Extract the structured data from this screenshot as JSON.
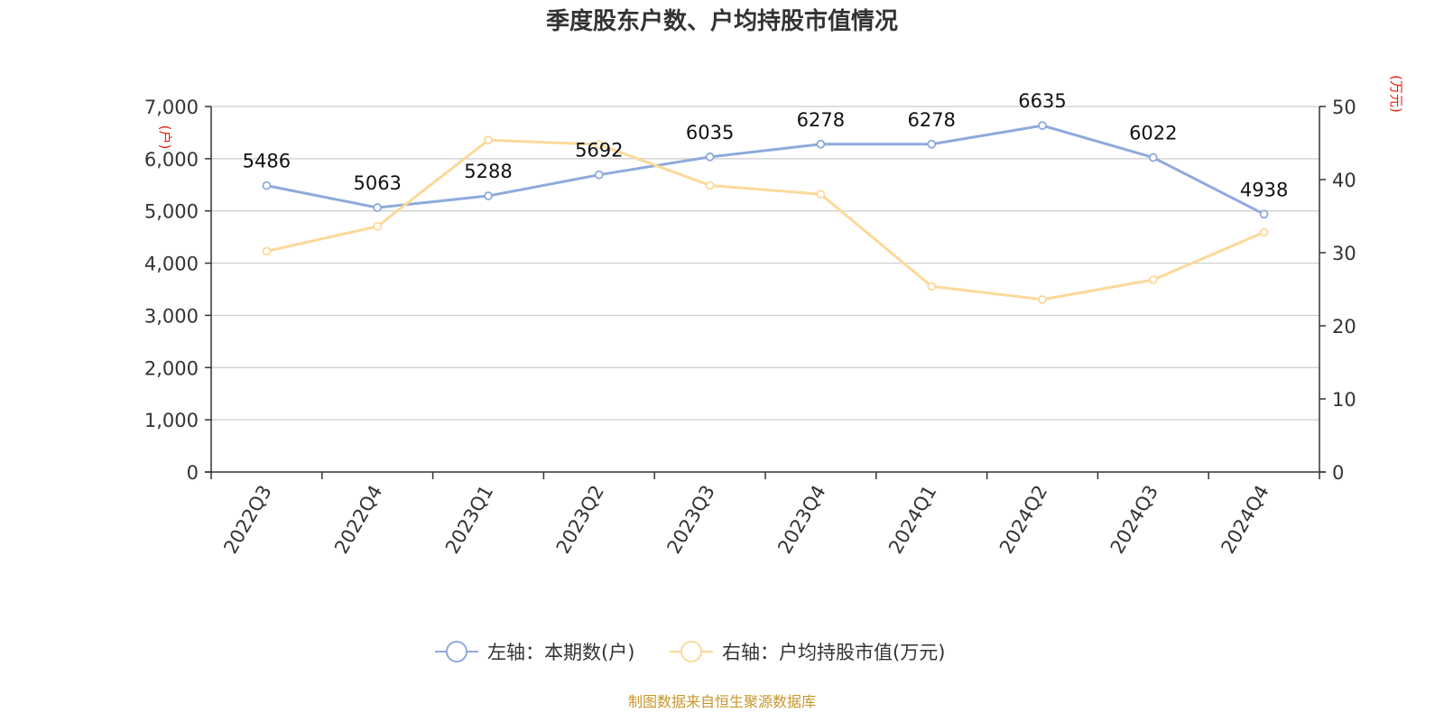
{
  "chart_data": {
    "type": "line",
    "title": "季度股东户数、户均持股市值情况",
    "categories": [
      "2022Q3",
      "2022Q4",
      "2023Q1",
      "2023Q2",
      "2023Q3",
      "2023Q4",
      "2024Q1",
      "2024Q2",
      "2024Q3",
      "2024Q4"
    ],
    "y_left": {
      "unit": "(户)",
      "range": [
        0,
        7000
      ],
      "ticks": [
        0,
        1000,
        2000,
        3000,
        4000,
        5000,
        6000,
        7000
      ],
      "tick_labels": [
        "0",
        "1,000",
        "2,000",
        "3,000",
        "4,000",
        "5,000",
        "6,000",
        "7,000"
      ]
    },
    "y_right": {
      "unit": "(万元)",
      "range": [
        0,
        50
      ],
      "ticks": [
        0,
        10,
        20,
        30,
        40,
        50
      ],
      "tick_labels": [
        "0",
        "10",
        "20",
        "30",
        "40",
        "50"
      ]
    },
    "series": [
      {
        "name": "左轴：本期数(户)",
        "axis": "left",
        "color": "#8eaadb",
        "values": [
          5486,
          5063,
          5288,
          5692,
          6035,
          6278,
          6278,
          6635,
          6022,
          4938
        ],
        "labels": [
          "5486",
          "5063",
          "5288",
          "5692",
          "6035",
          "6278",
          "6278",
          "6635",
          "6022",
          "4938"
        ]
      },
      {
        "name": "右轴：户均持股市值(万元)",
        "axis": "right",
        "color": "#fcd99a",
        "values": [
          30.2,
          33.6,
          45.4,
          44.8,
          39.2,
          38.0,
          25.4,
          23.6,
          26.3,
          32.8
        ]
      }
    ],
    "grid": true,
    "legend_position": "bottom-center",
    "source": "制图数据来自恒生聚源数据库"
  }
}
